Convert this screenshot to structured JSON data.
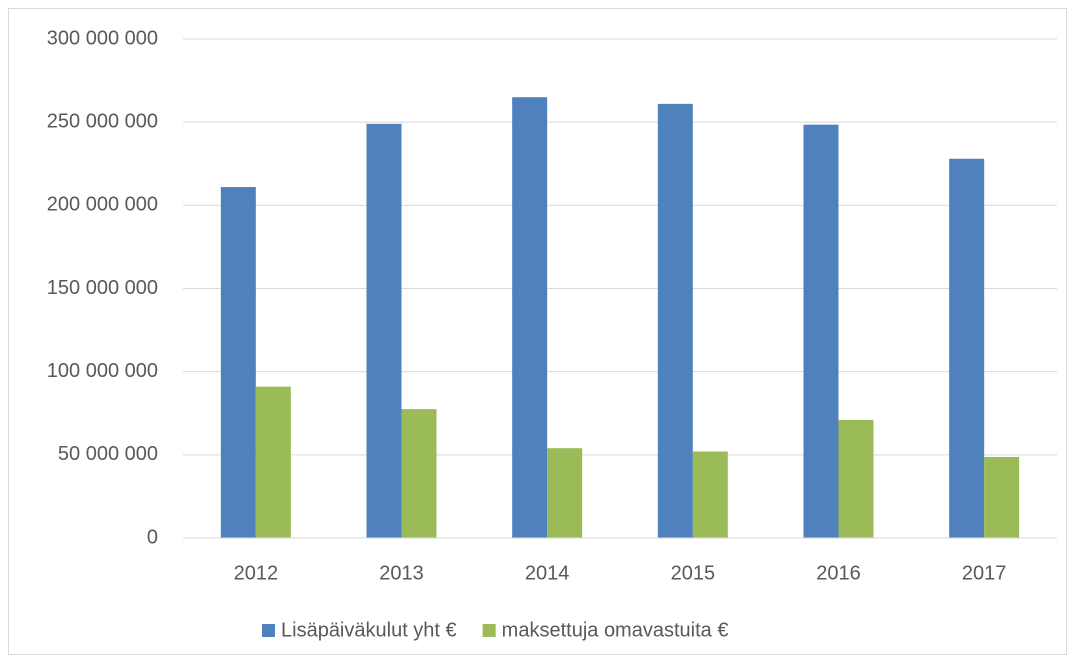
{
  "chart_data": {
    "type": "bar",
    "categories": [
      "2012",
      "2013",
      "2014",
      "2015",
      "2016",
      "2017"
    ],
    "series": [
      {
        "name": "Lisäpäiväkulut yht €",
        "color": "#4f81bd",
        "values": [
          211000000,
          249000000,
          265000000,
          261000000,
          248500000,
          228000000
        ]
      },
      {
        "name": "maksettuja omavastuita €",
        "color": "#9bbb59",
        "values": [
          91000000,
          77500000,
          54000000,
          52000000,
          71000000,
          48700000
        ]
      }
    ],
    "ylim": [
      0,
      300000000
    ],
    "yticks": [
      0,
      {
        "value": 50000000,
        "label": "50 000 000"
      },
      {
        "value": 100000000,
        "label": "100 000 000"
      },
      {
        "value": 150000000,
        "label": "150 000 000"
      },
      {
        "value": 200000000,
        "label": "200 000 000"
      },
      {
        "value": 250000000,
        "label": "250 000 000"
      },
      {
        "value": 300000000,
        "label": "300 000 000"
      }
    ],
    "grid": true,
    "legend": "bottom"
  }
}
